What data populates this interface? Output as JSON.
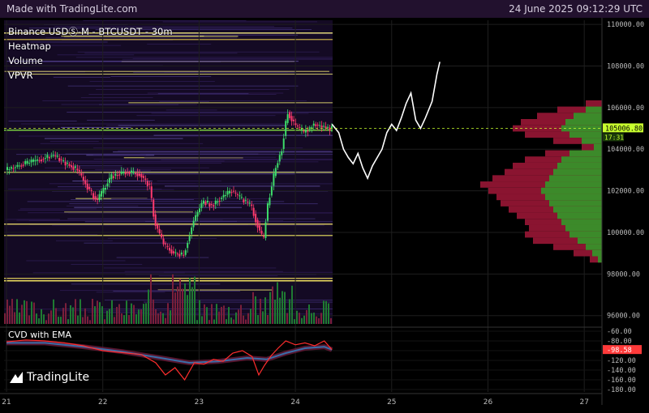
{
  "header": {
    "made_with": "Made with TradingLite.com",
    "datetime": "24 June 2025 09:12:29 UTC"
  },
  "legend": {
    "symbol": "Binance USDⓈ-M - BTCUSDT - 30m",
    "heatmap": "Heatmap",
    "volume": "Volume",
    "vpvr": "VPVR"
  },
  "cvd": {
    "title": "CVD with EMA"
  },
  "brand": {
    "name": "TradingLite",
    "icon": "tradinglite-logo-icon"
  },
  "colors": {
    "up": "#3ddc6a",
    "down": "#ff3a6e",
    "price_line": "#c8ff2e",
    "cvd_line": "#ff2d2d",
    "ema": "#3a6ea8",
    "vpvr_buy": "#3c8a2a",
    "vpvr_sell": "#8a1430"
  },
  "chart_data": [
    {
      "type": "candlestick",
      "title": "Binance USDⓈ-M - BTCUSDT - 30m",
      "x_ticks": [
        "21",
        "22",
        "23",
        "24",
        "25",
        "26",
        "27"
      ],
      "y_ticks": [
        "110000.00",
        "108000.00",
        "106000.00",
        "104000.00",
        "102000.00",
        "100000.00",
        "98000.00",
        "96000.00"
      ],
      "ylim": [
        95600,
        110200
      ],
      "last_price": "105006.80",
      "countdown": "17:31",
      "price_path": [
        [
          21.0,
          103000
        ],
        [
          21.2,
          103300
        ],
        [
          21.35,
          103500
        ],
        [
          21.5,
          103700
        ],
        [
          21.6,
          103400
        ],
        [
          21.75,
          103000
        ],
        [
          21.85,
          102200
        ],
        [
          21.95,
          101500
        ],
        [
          22.0,
          101900
        ],
        [
          22.1,
          102700
        ],
        [
          22.25,
          102900
        ],
        [
          22.4,
          102800
        ],
        [
          22.5,
          102200
        ],
        [
          22.55,
          100500
        ],
        [
          22.65,
          99400
        ],
        [
          22.75,
          99000
        ],
        [
          22.85,
          98900
        ],
        [
          22.95,
          100500
        ],
        [
          23.05,
          101500
        ],
        [
          23.15,
          101300
        ],
        [
          23.25,
          101700
        ],
        [
          23.35,
          102000
        ],
        [
          23.45,
          101600
        ],
        [
          23.55,
          101300
        ],
        [
          23.6,
          100600
        ],
        [
          23.68,
          99600
        ],
        [
          23.72,
          101200
        ],
        [
          23.8,
          103000
        ],
        [
          23.87,
          104000
        ],
        [
          23.93,
          105800
        ],
        [
          24.0,
          105200
        ],
        [
          24.1,
          104800
        ],
        [
          24.2,
          105200
        ],
        [
          24.3,
          105100
        ],
        [
          24.38,
          105000
        ]
      ],
      "projection_path": [
        [
          24.38,
          105200
        ],
        [
          24.45,
          104800
        ],
        [
          24.5,
          104000
        ],
        [
          24.55,
          103600
        ],
        [
          24.6,
          103300
        ],
        [
          24.65,
          103800
        ],
        [
          24.7,
          103100
        ],
        [
          24.75,
          102600
        ],
        [
          24.8,
          103200
        ],
        [
          24.9,
          104000
        ],
        [
          24.95,
          104800
        ],
        [
          25.0,
          105200
        ],
        [
          25.05,
          104900
        ],
        [
          25.1,
          105500
        ],
        [
          25.15,
          106200
        ],
        [
          25.2,
          106700
        ],
        [
          25.25,
          105400
        ],
        [
          25.3,
          105000
        ],
        [
          25.35,
          105500
        ],
        [
          25.42,
          106300
        ],
        [
          25.47,
          107600
        ],
        [
          25.5,
          108200
        ]
      ],
      "vpvr_profile": [
        {
          "price": 106200,
          "buy": 0,
          "sell": 20
        },
        {
          "price": 105900,
          "buy": 20,
          "sell": 55
        },
        {
          "price": 105600,
          "buy": 35,
          "sell": 80
        },
        {
          "price": 105300,
          "buy": 45,
          "sell": 100
        },
        {
          "price": 105000,
          "buy": 50,
          "sell": 110
        },
        {
          "price": 104700,
          "buy": 40,
          "sell": 95
        },
        {
          "price": 104400,
          "buy": 25,
          "sell": 60
        },
        {
          "price": 104100,
          "buy": 10,
          "sell": 25
        },
        {
          "price": 103800,
          "buy": 40,
          "sell": 70
        },
        {
          "price": 103500,
          "buy": 50,
          "sell": 95
        },
        {
          "price": 103200,
          "buy": 55,
          "sell": 110
        },
        {
          "price": 102900,
          "buy": 60,
          "sell": 120
        },
        {
          "price": 102600,
          "buy": 65,
          "sell": 135
        },
        {
          "price": 102300,
          "buy": 70,
          "sell": 150
        },
        {
          "price": 102000,
          "buy": 75,
          "sell": 140
        },
        {
          "price": 101700,
          "buy": 70,
          "sell": 130
        },
        {
          "price": 101400,
          "buy": 65,
          "sell": 125
        },
        {
          "price": 101100,
          "buy": 60,
          "sell": 115
        },
        {
          "price": 100800,
          "buy": 55,
          "sell": 105
        },
        {
          "price": 100500,
          "buy": 50,
          "sell": 95
        },
        {
          "price": 100200,
          "buy": 45,
          "sell": 90
        },
        {
          "price": 99900,
          "buy": 40,
          "sell": 95
        },
        {
          "price": 99600,
          "buy": 30,
          "sell": 85
        },
        {
          "price": 99300,
          "buy": 20,
          "sell": 60
        },
        {
          "price": 99000,
          "buy": 12,
          "sell": 35
        },
        {
          "price": 98700,
          "buy": 5,
          "sell": 15
        }
      ]
    },
    {
      "type": "line",
      "title": "CVD with EMA",
      "y_ticks": [
        "-60.00",
        "-80.00",
        "-100.00",
        "-120.00",
        "-140.00",
        "-160.00",
        "-180.00"
      ],
      "ylim": [
        -185,
        -55
      ],
      "last_value": "-98.58",
      "series": [
        {
          "name": "CVD",
          "values": [
            [
              21.0,
              -82
            ],
            [
              21.2,
              -78
            ],
            [
              21.4,
              -80
            ],
            [
              21.6,
              -84
            ],
            [
              21.8,
              -90
            ],
            [
              22.0,
              -100
            ],
            [
              22.2,
              -104
            ],
            [
              22.4,
              -108
            ],
            [
              22.55,
              -125
            ],
            [
              22.65,
              -150
            ],
            [
              22.75,
              -135
            ],
            [
              22.85,
              -160
            ],
            [
              22.95,
              -125
            ],
            [
              23.05,
              -128
            ],
            [
              23.15,
              -118
            ],
            [
              23.25,
              -122
            ],
            [
              23.35,
              -105
            ],
            [
              23.45,
              -100
            ],
            [
              23.55,
              -112
            ],
            [
              23.62,
              -150
            ],
            [
              23.68,
              -130
            ],
            [
              23.75,
              -110
            ],
            [
              23.82,
              -95
            ],
            [
              23.9,
              -80
            ],
            [
              24.0,
              -88
            ],
            [
              24.1,
              -84
            ],
            [
              24.2,
              -90
            ],
            [
              24.3,
              -80
            ],
            [
              24.38,
              -98
            ]
          ]
        },
        {
          "name": "EMA",
          "values": [
            [
              21.0,
              -84
            ],
            [
              21.4,
              -84
            ],
            [
              21.8,
              -92
            ],
            [
              22.2,
              -102
            ],
            [
              22.6,
              -115
            ],
            [
              22.9,
              -125
            ],
            [
              23.2,
              -122
            ],
            [
              23.5,
              -115
            ],
            [
              23.7,
              -118
            ],
            [
              23.9,
              -105
            ],
            [
              24.1,
              -95
            ],
            [
              24.3,
              -92
            ],
            [
              24.38,
              -98
            ]
          ]
        }
      ]
    }
  ]
}
